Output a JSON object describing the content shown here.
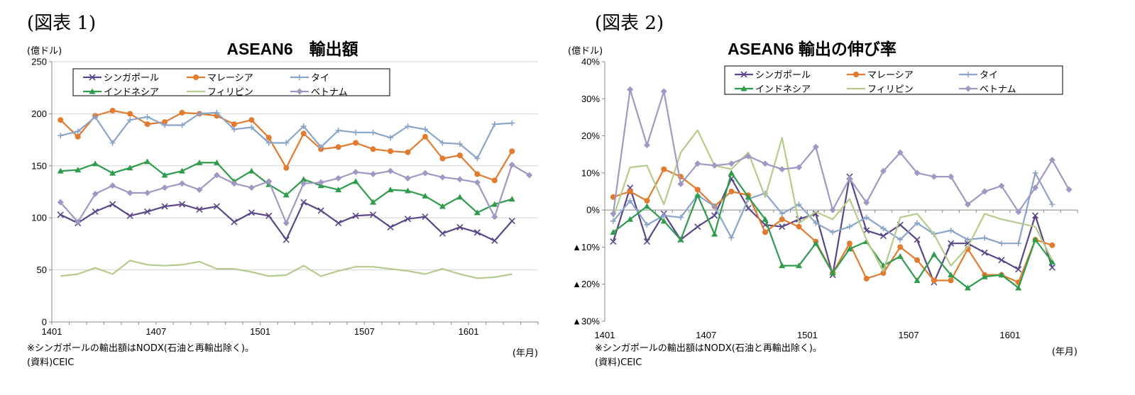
{
  "figures": [
    {
      "figure_label": "(図表 1)",
      "notes": [
        "※シンガポールの輸出額はNODX(石油と再輸出除く)。",
        "(資料)CEIC"
      ],
      "chart_data": {
        "type": "line",
        "title": "ASEAN6　輸出額",
        "ylabel": "(億ドル)",
        "xlabel": "(年月)",
        "ylim": [
          0,
          250
        ],
        "yticks": [
          0,
          50,
          100,
          150,
          200,
          250
        ],
        "ytick_labels": [
          "0",
          "50",
          "100",
          "150",
          "200",
          "250"
        ],
        "x": [
          "1401",
          "1402",
          "1403",
          "1404",
          "1405",
          "1406",
          "1407",
          "1408",
          "1409",
          "1410",
          "1411",
          "1412",
          "1501",
          "1502",
          "1503",
          "1504",
          "1505",
          "1506",
          "1507",
          "1508",
          "1509",
          "1510",
          "1511",
          "1512",
          "1601",
          "1602",
          "1603",
          "1604"
        ],
        "xtick_labels": [
          "1401",
          "1407",
          "1501",
          "1507",
          "1601"
        ],
        "xtick_index": [
          0,
          6,
          12,
          18,
          24
        ],
        "grid": true,
        "legend_position": "top-inside",
        "series": [
          {
            "name": "シンガポール",
            "color": "#5b4787",
            "marker": "x",
            "values": [
              103,
              95,
              106,
              113,
              102,
              106,
              111,
              113,
              108,
              111,
              96,
              105,
              102,
              79,
              115,
              107,
              95,
              102,
              103,
              91,
              99,
              101,
              85,
              91,
              86,
              78,
              97,
              null
            ]
          },
          {
            "name": "マレーシア",
            "color": "#e07b2f",
            "marker": "circle",
            "values": [
              194,
              178,
              198,
              203,
              200,
              190,
              192,
              201,
              200,
              198,
              190,
              194,
              177,
              148,
              181,
              166,
              168,
              172,
              166,
              164,
              163,
              178,
              157,
              160,
              142,
              136,
              164,
              null
            ]
          },
          {
            "name": "タイ",
            "color": "#8aa5c9",
            "marker": "plus",
            "values": [
              179,
              183,
              197,
              172,
              194,
              197,
              189,
              189,
              200,
              201,
              185,
              187,
              172,
              172,
              188,
              168,
              184,
              182,
              182,
              177,
              188,
              185,
              172,
              171,
              157,
              190,
              191,
              null
            ]
          },
          {
            "name": "インドネシア",
            "color": "#2e9b4d",
            "marker": "triangle",
            "values": [
              145,
              146,
              152,
              143,
              148,
              154,
              141,
              145,
              153,
              153,
              135,
              145,
              132,
              122,
              137,
              131,
              127,
              135,
              115,
              127,
              126,
              121,
              111,
              120,
              105,
              113,
              118,
              null
            ]
          },
          {
            "name": "フィリピン",
            "color": "#b5cb8c",
            "marker": "none",
            "values": [
              44,
              46,
              52,
              46,
              59,
              55,
              54,
              55,
              58,
              51,
              51,
              48,
              44,
              45,
              54,
              44,
              49,
              53,
              53,
              51,
              49,
              46,
              51,
              46,
              42,
              43,
              46,
              null
            ]
          },
          {
            "name": "ベトナム",
            "color": "#a197c3",
            "marker": "diamond",
            "values": [
              115,
              96,
              123,
              131,
              124,
              124,
              129,
              133,
              127,
              141,
              133,
              129,
              135,
              95,
              133,
              134,
              138,
              144,
              142,
              145,
              138,
              143,
              139,
              137,
              134,
              101,
              151,
              141
            ]
          }
        ]
      }
    },
    {
      "figure_label": "(図表 2)",
      "notes": [
        "※シンガポールの輸出額はNODX(石油と再輸出除く)。",
        "(資料)CEIC"
      ],
      "chart_data": {
        "type": "line",
        "title": "ASEAN6 輸出の伸び率",
        "ylabel": "(億ドル)",
        "xlabel": "(年月)",
        "ylim": [
          -30,
          40
        ],
        "yticks": [
          -30,
          -20,
          -10,
          0,
          10,
          20,
          30,
          40
        ],
        "ytick_labels": [
          "▲30%",
          "▲20%",
          "▲10%",
          "0%",
          "10%",
          "20%",
          "30%",
          "40%"
        ],
        "x": [
          "1401",
          "1402",
          "1403",
          "1404",
          "1405",
          "1406",
          "1407",
          "1408",
          "1409",
          "1410",
          "1411",
          "1412",
          "1501",
          "1502",
          "1503",
          "1504",
          "1505",
          "1506",
          "1507",
          "1508",
          "1509",
          "1510",
          "1511",
          "1512",
          "1601",
          "1602",
          "1603",
          "1604"
        ],
        "xtick_labels": [
          "1401",
          "1407",
          "1501",
          "1507",
          "1601"
        ],
        "xtick_index": [
          0,
          6,
          12,
          18,
          24
        ],
        "grid": false,
        "legend_position": "top-right",
        "series": [
          {
            "name": "シンガポール",
            "color": "#5b4787",
            "marker": "x",
            "values": [
              -8.5,
              6,
              -8.5,
              -1,
              -8,
              -4.5,
              -1.5,
              8.5,
              0.5,
              -4,
              -4.5,
              -2.5,
              -1,
              -17.5,
              9,
              -5.5,
              -7,
              -4,
              -8,
              -19.5,
              -9,
              -9,
              -11.5,
              -13.5,
              -16,
              -1.5,
              -15.5,
              null
            ]
          },
          {
            "name": "マレーシア",
            "color": "#e07b2f",
            "marker": "circle",
            "values": [
              3.5,
              5,
              2.5,
              11,
              9,
              5.5,
              1,
              5,
              4,
              -6,
              -2.5,
              -4.5,
              -8.5,
              -17,
              -9,
              -18.5,
              -17,
              -10,
              -13.5,
              -19,
              -19,
              -10.5,
              -17.5,
              -17.5,
              -19.5,
              -8,
              -9.5,
              null
            ]
          },
          {
            "name": "タイ",
            "color": "#8aa5c9",
            "marker": "plus",
            "values": [
              -3,
              2.5,
              -4,
              -1.5,
              -2,
              4,
              1,
              -7.5,
              3,
              4.5,
              -1,
              1.5,
              -3.5,
              -6,
              -4.5,
              -2,
              -5,
              -8,
              -3.5,
              -6.5,
              -5.5,
              -8,
              -7.5,
              -9,
              -9,
              10,
              1.5,
              null
            ]
          },
          {
            "name": "インドネシア",
            "color": "#2e9b4d",
            "marker": "triangle",
            "values": [
              -6,
              -2.5,
              1,
              -3,
              -8,
              4,
              -6.5,
              10,
              3.5,
              -2.5,
              -15,
              -15,
              -9,
              -17,
              -10.5,
              -8.5,
              -15,
              -12.5,
              -19,
              -12,
              -17.5,
              -21,
              -18,
              -17.5,
              -21,
              -8,
              -14,
              null
            ]
          },
          {
            "name": "フィリピン",
            "color": "#b5cb8c",
            "marker": "none",
            "values": [
              -2,
              11.5,
              12,
              1.5,
              15.5,
              21.5,
              12,
              11,
              15.5,
              3.5,
              19.5,
              -3.5,
              -0.5,
              -2.5,
              3,
              -8,
              -16.5,
              -2,
              -1,
              -6.5,
              -15,
              -10,
              -1,
              -2.5,
              -3.5,
              -4.5,
              -13.5,
              null
            ]
          },
          {
            "name": "ベトナム",
            "color": "#a197c3",
            "marker": "diamond",
            "values": [
              -1,
              32.5,
              17.5,
              32,
              7,
              12.5,
              12,
              12.5,
              14.5,
              12.5,
              11,
              11.5,
              17,
              0,
              8.5,
              2,
              10.5,
              15.5,
              10,
              9,
              9,
              1.5,
              5,
              6.5,
              -0.5,
              6,
              13.5,
              5.5
            ]
          }
        ]
      }
    }
  ]
}
